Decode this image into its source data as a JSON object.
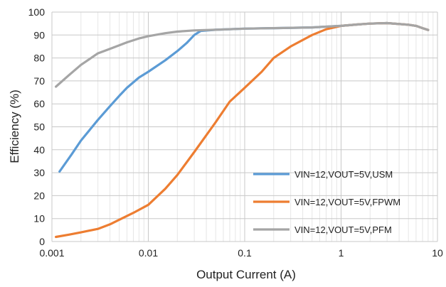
{
  "chart_data": {
    "type": "line",
    "title": "",
    "xlabel": "Output Current (A)",
    "ylabel": "Efficiency (%)",
    "xscale": "log",
    "xlim": [
      0.001,
      10
    ],
    "ylim": [
      0,
      100
    ],
    "grid": true,
    "legend_position": "bottom-right",
    "x_ticks": [
      {
        "value": 0.001,
        "label": "0.001"
      },
      {
        "value": 0.01,
        "label": "0.01"
      },
      {
        "value": 0.1,
        "label": "0.1"
      },
      {
        "value": 1,
        "label": "1"
      },
      {
        "value": 10,
        "label": "10"
      }
    ],
    "y_ticks": [
      {
        "value": 0,
        "label": "0"
      },
      {
        "value": 10,
        "label": "10"
      },
      {
        "value": 20,
        "label": "20"
      },
      {
        "value": 30,
        "label": "30"
      },
      {
        "value": 40,
        "label": "40"
      },
      {
        "value": 50,
        "label": "50"
      },
      {
        "value": 60,
        "label": "60"
      },
      {
        "value": 70,
        "label": "70"
      },
      {
        "value": 80,
        "label": "80"
      },
      {
        "value": 90,
        "label": "90"
      },
      {
        "value": 100,
        "label": "100"
      }
    ],
    "series": [
      {
        "name": "VIN=12,VOUT=5V,USM",
        "color": "#5b9bd5",
        "points": [
          [
            0.0012,
            30.5
          ],
          [
            0.0016,
            38
          ],
          [
            0.002,
            44
          ],
          [
            0.003,
            53
          ],
          [
            0.004,
            59
          ],
          [
            0.005,
            63.5
          ],
          [
            0.006,
            67
          ],
          [
            0.008,
            71.5
          ],
          [
            0.01,
            74
          ],
          [
            0.015,
            79
          ],
          [
            0.02,
            83
          ],
          [
            0.025,
            86.5
          ],
          [
            0.03,
            90
          ],
          [
            0.035,
            91.8
          ],
          [
            0.05,
            92.3
          ],
          [
            0.1,
            92.8
          ],
          [
            0.2,
            93
          ],
          [
            0.5,
            93.3
          ],
          [
            1,
            94
          ],
          [
            1.5,
            94.6
          ],
          [
            2,
            95
          ],
          [
            3,
            95.2
          ],
          [
            5,
            94.5
          ],
          [
            6,
            94
          ],
          [
            7,
            93
          ],
          [
            8,
            92.2
          ]
        ]
      },
      {
        "name": "VIN=12,VOUT=5V,FPWM",
        "color": "#ed7d31",
        "points": [
          [
            0.0011,
            2
          ],
          [
            0.0015,
            3
          ],
          [
            0.002,
            4
          ],
          [
            0.003,
            5.5
          ],
          [
            0.004,
            7.5
          ],
          [
            0.005,
            9.5
          ],
          [
            0.007,
            12.5
          ],
          [
            0.01,
            16
          ],
          [
            0.015,
            23
          ],
          [
            0.02,
            29
          ],
          [
            0.03,
            39
          ],
          [
            0.05,
            52
          ],
          [
            0.07,
            61
          ],
          [
            0.1,
            67
          ],
          [
            0.15,
            74
          ],
          [
            0.2,
            80
          ],
          [
            0.3,
            85
          ],
          [
            0.5,
            90
          ],
          [
            0.7,
            92.5
          ],
          [
            1,
            94
          ],
          [
            1.5,
            94.6
          ],
          [
            2,
            95
          ],
          [
            3,
            95.2
          ],
          [
            5,
            94.5
          ],
          [
            6,
            94
          ],
          [
            7,
            93
          ],
          [
            8,
            92.2
          ]
        ]
      },
      {
        "name": "VIN=12,VOUT=5V,PFM",
        "color": "#a5a5a5",
        "points": [
          [
            0.0011,
            67.5
          ],
          [
            0.0015,
            72.5
          ],
          [
            0.002,
            77
          ],
          [
            0.003,
            82
          ],
          [
            0.004,
            84
          ],
          [
            0.005,
            85.5
          ],
          [
            0.006,
            86.8
          ],
          [
            0.008,
            88.5
          ],
          [
            0.01,
            89.5
          ],
          [
            0.015,
            90.8
          ],
          [
            0.02,
            91.5
          ],
          [
            0.03,
            92
          ],
          [
            0.05,
            92.3
          ],
          [
            0.1,
            92.8
          ],
          [
            0.2,
            93
          ],
          [
            0.5,
            93.3
          ],
          [
            1,
            94
          ],
          [
            1.5,
            94.6
          ],
          [
            2,
            95
          ],
          [
            3,
            95.2
          ],
          [
            5,
            94.5
          ],
          [
            6,
            94
          ],
          [
            7,
            93
          ],
          [
            8,
            92.2
          ]
        ]
      }
    ]
  }
}
